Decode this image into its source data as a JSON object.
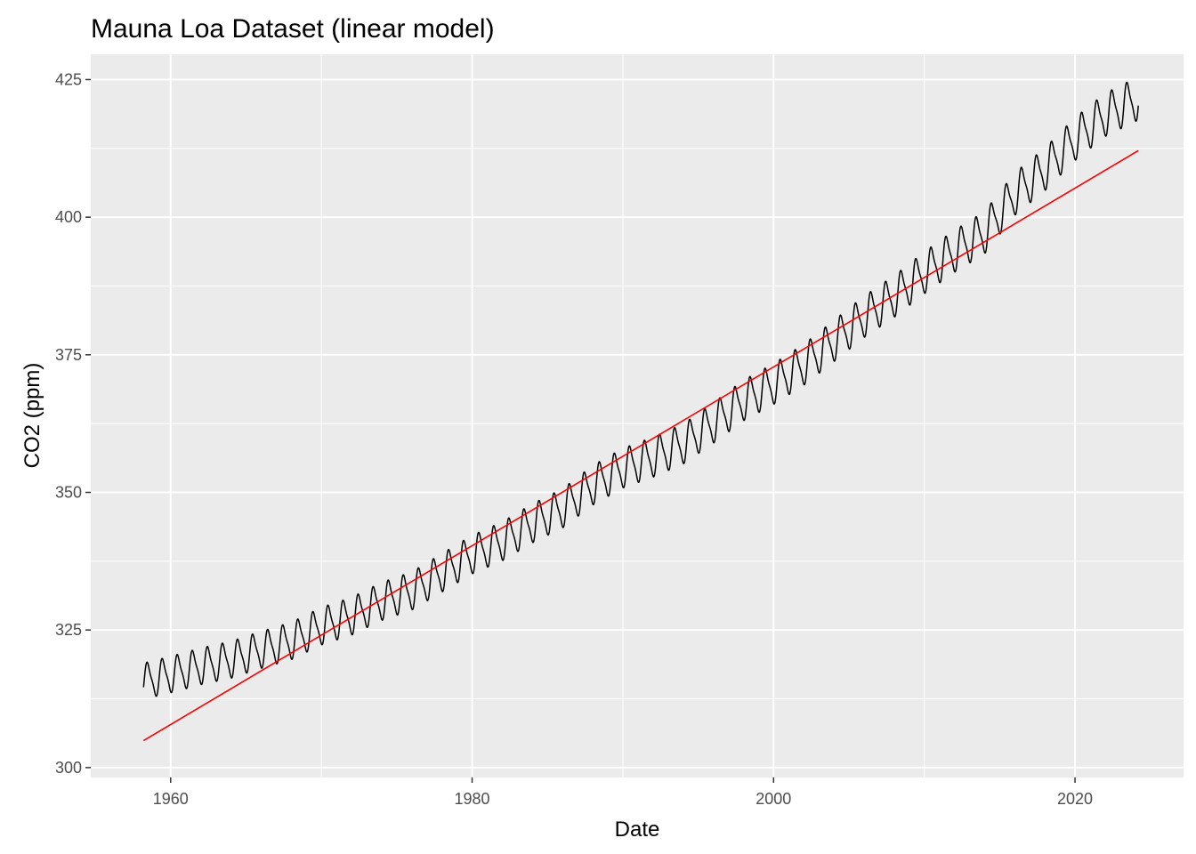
{
  "chart_data": {
    "type": "line",
    "title": "Mauna Loa Dataset (linear model)",
    "xlabel": "Date",
    "ylabel": "CO2 (ppm)",
    "x_ticks": [
      "1960",
      "1980",
      "2000",
      "2020"
    ],
    "y_ticks": [
      "300",
      "325",
      "350",
      "375",
      "400",
      "425"
    ],
    "xlim": [
      1954.7,
      2027.2
    ],
    "ylim": [
      298.2,
      429.6
    ],
    "grid": true,
    "legend": "none",
    "background": "#ebebeb",
    "colors": {
      "observed": "#000000",
      "fit": "#ff0000",
      "grid": "#ffffff"
    },
    "series": [
      {
        "x": [
          1958.2,
          1960,
          1962,
          1964,
          1966,
          1968,
          1970,
          1972,
          1974,
          1976,
          1978,
          1980,
          1982,
          1984,
          1986,
          1988,
          1990,
          1992,
          1994,
          1996,
          1998,
          2000,
          2002,
          2004,
          2006,
          2008,
          2010,
          2012,
          2014,
          2016,
          2018,
          2020,
          2022,
          2024.2
        ],
        "values": [
          315.7,
          316.9,
          318.4,
          319.6,
          321.4,
          323.0,
          325.7,
          327.5,
          330.2,
          332.1,
          335.4,
          338.7,
          341.1,
          344.4,
          347.1,
          351.3,
          354.4,
          356.4,
          358.8,
          362.6,
          366.7,
          369.7,
          373.2,
          377.5,
          381.9,
          385.6,
          389.9,
          393.8,
          397.2,
          404.2,
          408.7,
          414.2,
          418.6,
          421.6
        ]
      },
      {
        "x": [
          1958.2,
          2024.2
        ],
        "values": [
          304.9,
          412.1
        ]
      }
    ]
  }
}
